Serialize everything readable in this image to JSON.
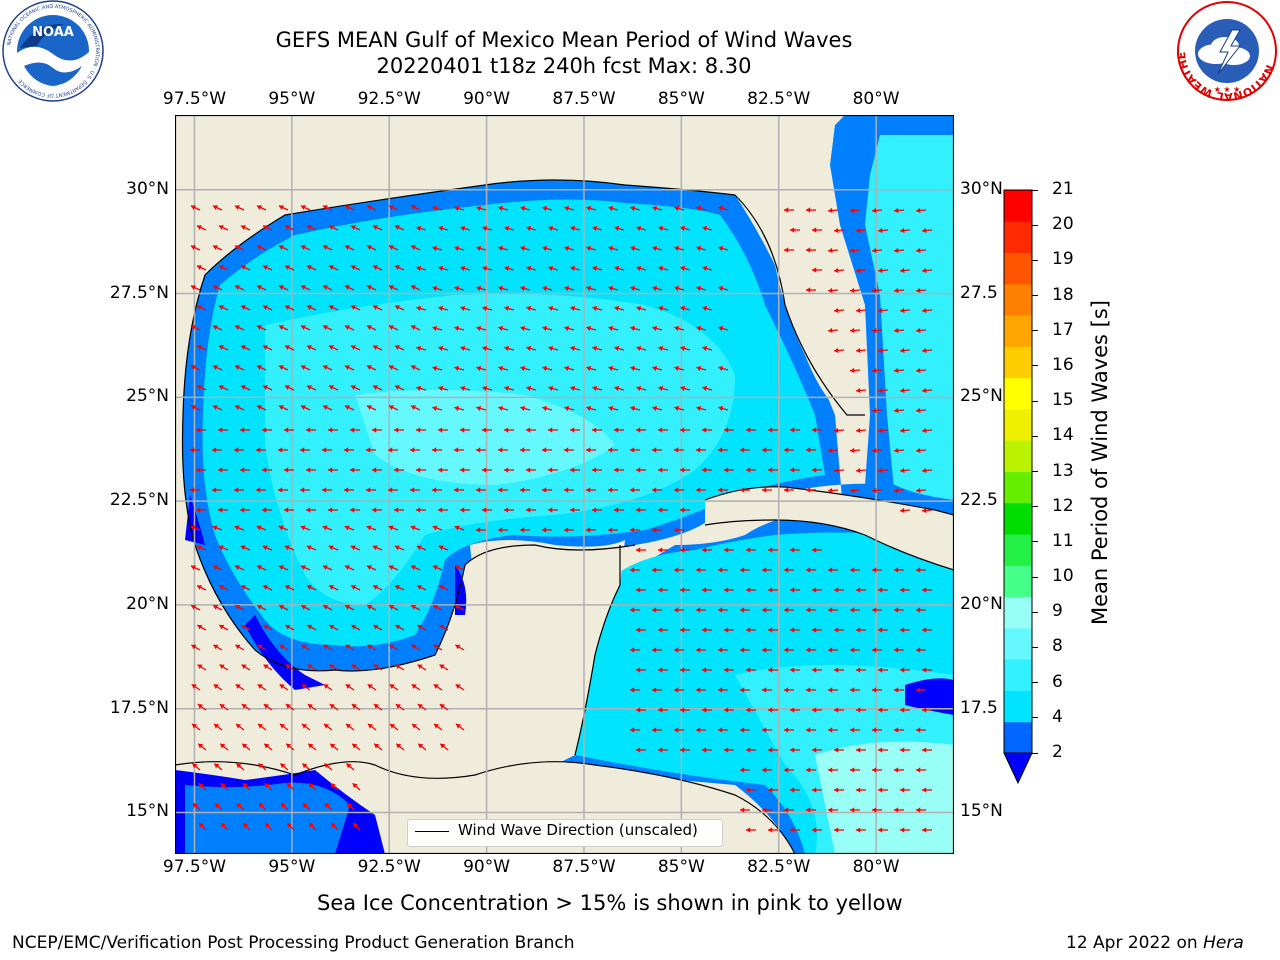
{
  "title": {
    "line1": "GEFS MEAN Gulf of Mexico Mean Period of Wind Waves",
    "line2": "20220401 t18z 240h fcst   Max: 8.30"
  },
  "map": {
    "lon_ticks_top": [
      "97.5°W",
      "95°W",
      "92.5°W",
      "90°W",
      "87.5°W",
      "85°W",
      "82.5°W",
      "80°W"
    ],
    "lon_ticks_bottom": [
      "97.5°W",
      "95°W",
      "92.5°W",
      "90°W",
      "87.5°W",
      "85°W",
      "82.5°W",
      "80°W"
    ],
    "lat_ticks_left": [
      "30°N",
      "27.5°N",
      "25°N",
      "22.5°N",
      "20°N",
      "17.5°N",
      "15°N"
    ],
    "lat_ticks_right": [
      "30°N",
      "27.5",
      "25°N",
      "22.5",
      "20°N",
      "17.5",
      "15°N"
    ],
    "lon_values": [
      -97.5,
      -95,
      -92.5,
      -90,
      -87.5,
      -85,
      -82.5,
      -80
    ],
    "lat_values": [
      30,
      27.5,
      25,
      22.5,
      20,
      17.5,
      15
    ],
    "lon_range": [
      -98,
      -78
    ],
    "lat_range": [
      14,
      31.8
    ],
    "land_color": "#efecdc",
    "grid_color": "#b0b0b0",
    "arrow_color": "#ff0000",
    "legend_text": "Wind Wave Direction (unscaled)"
  },
  "colorbar": {
    "label": "Mean Period of Wind Waves [s]",
    "ticks": [
      "21",
      "20",
      "19",
      "18",
      "17",
      "16",
      "15",
      "14",
      "13",
      "12",
      "11",
      "10",
      "9",
      "8",
      "6",
      "4",
      "2"
    ],
    "colors_bottom_to_top": [
      "#0066ff",
      "#00e4ff",
      "#33f0ff",
      "#66f8ff",
      "#99fff6",
      "#44ff88",
      "#22f044",
      "#00dd00",
      "#66ee00",
      "#bbf200",
      "#eef000",
      "#ffff00",
      "#ffcc00",
      "#ffa500",
      "#ff8000",
      "#ff5500",
      "#ff2a00",
      "#ff0000"
    ],
    "extend_color": "#0000ff"
  },
  "ice_note": "Sea Ice Concentration > 15% is shown in pink to yellow",
  "footer": {
    "left": "NCEP/EMC/Verification Post Processing Product Generation Branch",
    "right_date": "12 Apr 2022 on ",
    "right_host": "Hera"
  },
  "logos": {
    "noaa_text": "NOAA",
    "noaa_ring": "NATIONAL OCEANIC AND ATMOSPHERIC ADMINISTRATION · U.S. DEPARTMENT OF COMMERCE",
    "nws_ring": "NATIONAL WEATHER SERVICE"
  }
}
